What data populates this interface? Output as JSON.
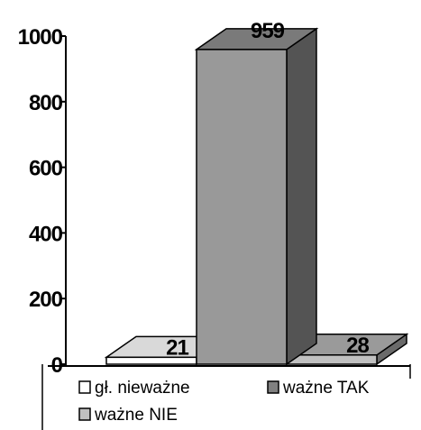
{
  "chart_data": {
    "type": "bar",
    "categories": [
      "gł. nieważne",
      "ważne TAK",
      "ważne NIE"
    ],
    "values": [
      21,
      959,
      28
    ],
    "data_labels": [
      "21",
      "959",
      "28"
    ],
    "ylim": [
      0,
      1000
    ],
    "yticks": [
      0,
      200,
      400,
      600,
      800,
      1000
    ],
    "ytick_labels": [
      "0",
      "200",
      "400",
      "600",
      "800",
      "1000"
    ],
    "title": "",
    "xlabel": "",
    "ylabel": "",
    "grid": false,
    "legend_position": "bottom",
    "three_d": true,
    "series_colors": [
      "#ffffff",
      "#999999",
      "#c0c0c0"
    ],
    "legend": [
      {
        "label": "gł. nieważne",
        "color": "#ffffff"
      },
      {
        "label": "ważne TAK",
        "color": "#808080"
      },
      {
        "label": "ważne NIE",
        "color": "#c0c0c0"
      }
    ]
  }
}
